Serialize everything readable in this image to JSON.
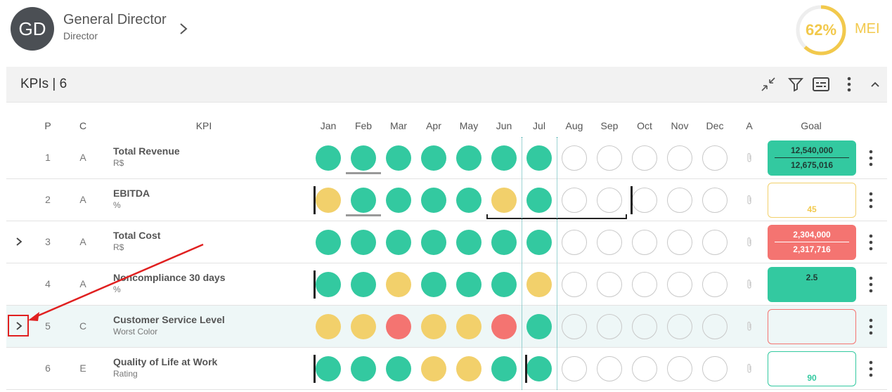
{
  "user": {
    "initials": "GD",
    "name": "General Director",
    "role": "Director"
  },
  "mei": {
    "value_label": "62%",
    "percent": 62,
    "label": "MEI",
    "color": "#f2c94c"
  },
  "section": {
    "title": "KPIs | 6"
  },
  "toolbar_icons": [
    "collapse-arrows-icon",
    "filter-icon",
    "subtitles-icon",
    "more-vert-icon",
    "chevron-up-icon"
  ],
  "columns": {
    "p": "P",
    "c": "C",
    "kpi": "KPI",
    "a": "A",
    "goal": "Goal",
    "months": [
      "Jan",
      "Feb",
      "Mar",
      "Apr",
      "May",
      "Jun",
      "Jul",
      "Aug",
      "Sep",
      "Oct",
      "Nov",
      "Dec"
    ]
  },
  "colors": {
    "green": "#33c9a0",
    "yellow": "#f2d06b",
    "red": "#f47471",
    "accent_yellow": "#f2c94c"
  },
  "rows": [
    {
      "p": "1",
      "c": "A",
      "name": "Total Revenue",
      "unit": "R$",
      "expandable": false,
      "status": [
        "green",
        "green",
        "green",
        "green",
        "green",
        "green",
        "green",
        "empty",
        "empty",
        "empty",
        "empty",
        "empty"
      ],
      "goal": {
        "style": "green",
        "top": "12,540,000",
        "bottom": "12,675,016"
      }
    },
    {
      "p": "2",
      "c": "A",
      "name": "EBITDA",
      "unit": "%",
      "expandable": false,
      "status": [
        "yellow",
        "green",
        "green",
        "green",
        "green",
        "yellow",
        "green",
        "empty",
        "empty",
        "empty",
        "empty",
        "empty"
      ],
      "goal": {
        "style": "out-yellow",
        "value": "45"
      }
    },
    {
      "p": "3",
      "c": "A",
      "name": "Total Cost",
      "unit": "R$",
      "expandable": true,
      "status": [
        "green",
        "green",
        "green",
        "green",
        "green",
        "green",
        "green",
        "empty",
        "empty",
        "empty",
        "empty",
        "empty"
      ],
      "goal": {
        "style": "red",
        "top": "2,304,000",
        "bottom": "2,317,716"
      }
    },
    {
      "p": "4",
      "c": "A",
      "name": "Noncompliance 30 days",
      "unit": "%",
      "expandable": false,
      "status": [
        "green",
        "green",
        "yellow",
        "green",
        "green",
        "green",
        "yellow",
        "empty",
        "empty",
        "empty",
        "empty",
        "empty"
      ],
      "goal": {
        "style": "green",
        "value": "2.5"
      }
    },
    {
      "p": "5",
      "c": "C",
      "name": "Customer Service Level",
      "unit": "Worst Color",
      "expandable": true,
      "status": [
        "yellow",
        "yellow",
        "red",
        "yellow",
        "yellow",
        "red",
        "green",
        "empty",
        "empty",
        "empty",
        "empty",
        "empty"
      ],
      "goal": {
        "style": "out-red",
        "value": ""
      }
    },
    {
      "p": "6",
      "c": "E",
      "name": "Quality of Life at Work",
      "unit": "Rating",
      "expandable": false,
      "status": [
        "green",
        "green",
        "green",
        "yellow",
        "yellow",
        "green",
        "green",
        "empty",
        "empty",
        "empty",
        "empty",
        "empty"
      ],
      "goal": {
        "style": "out-green",
        "value": "90"
      }
    }
  ]
}
